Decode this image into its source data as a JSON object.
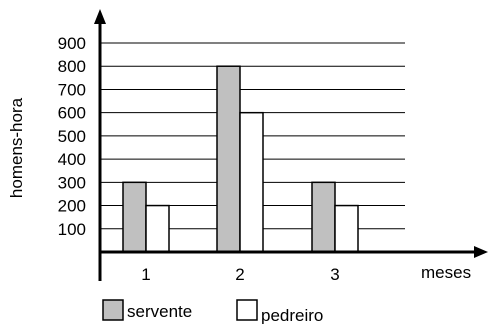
{
  "chart_data": {
    "type": "bar",
    "categories": [
      "1",
      "2",
      "3"
    ],
    "series": [
      {
        "name": "servente",
        "values": [
          300,
          800,
          300
        ],
        "color": "#c0c0c0"
      },
      {
        "name": "pedreiro",
        "values": [
          200,
          600,
          200
        ],
        "color": "#ffffff"
      }
    ],
    "title": "",
    "xlabel": "meses",
    "ylabel": "homens-hora",
    "ylim": [
      0,
      900
    ],
    "yticks": [
      100,
      200,
      300,
      400,
      500,
      600,
      700,
      800,
      900
    ],
    "grid": true,
    "legend_position": "bottom-left"
  }
}
